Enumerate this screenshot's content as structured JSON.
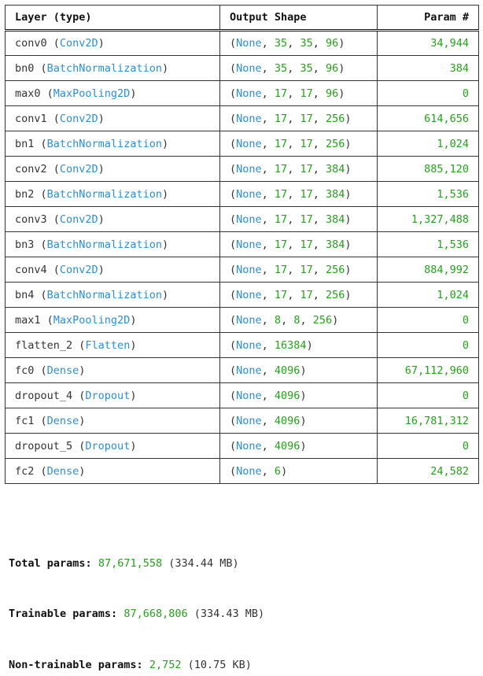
{
  "table": {
    "headers": {
      "layer": "Layer (type)",
      "output_shape": "Output Shape",
      "param": "Param #"
    },
    "none_token": "None",
    "rows": [
      {
        "name": "conv0",
        "type": "Conv2D",
        "shape": [
          "35",
          "35",
          "96"
        ],
        "params": "34,944"
      },
      {
        "name": "bn0",
        "type": "BatchNormalization",
        "shape": [
          "35",
          "35",
          "96"
        ],
        "params": "384"
      },
      {
        "name": "max0",
        "type": "MaxPooling2D",
        "shape": [
          "17",
          "17",
          "96"
        ],
        "params": "0"
      },
      {
        "name": "conv1",
        "type": "Conv2D",
        "shape": [
          "17",
          "17",
          "256"
        ],
        "params": "614,656"
      },
      {
        "name": "bn1",
        "type": "BatchNormalization",
        "shape": [
          "17",
          "17",
          "256"
        ],
        "params": "1,024"
      },
      {
        "name": "conv2",
        "type": "Conv2D",
        "shape": [
          "17",
          "17",
          "384"
        ],
        "params": "885,120"
      },
      {
        "name": "bn2",
        "type": "BatchNormalization",
        "shape": [
          "17",
          "17",
          "384"
        ],
        "params": "1,536"
      },
      {
        "name": "conv3",
        "type": "Conv2D",
        "shape": [
          "17",
          "17",
          "384"
        ],
        "params": "1,327,488"
      },
      {
        "name": "bn3",
        "type": "BatchNormalization",
        "shape": [
          "17",
          "17",
          "384"
        ],
        "params": "1,536"
      },
      {
        "name": "conv4",
        "type": "Conv2D",
        "shape": [
          "17",
          "17",
          "256"
        ],
        "params": "884,992"
      },
      {
        "name": "bn4",
        "type": "BatchNormalization",
        "shape": [
          "17",
          "17",
          "256"
        ],
        "params": "1,024"
      },
      {
        "name": "max1",
        "type": "MaxPooling2D",
        "shape": [
          "8",
          "8",
          "256"
        ],
        "params": "0"
      },
      {
        "name": "flatten_2",
        "type": "Flatten",
        "shape": [
          "16384"
        ],
        "params": "0"
      },
      {
        "name": "fc0",
        "type": "Dense",
        "shape": [
          "4096"
        ],
        "params": "67,112,960"
      },
      {
        "name": "dropout_4",
        "type": "Dropout",
        "shape": [
          "4096"
        ],
        "params": "0"
      },
      {
        "name": "fc1",
        "type": "Dense",
        "shape": [
          "4096"
        ],
        "params": "16,781,312"
      },
      {
        "name": "dropout_5",
        "type": "Dropout",
        "shape": [
          "4096"
        ],
        "params": "0"
      },
      {
        "name": "fc2",
        "type": "Dense",
        "shape": [
          "6"
        ],
        "params": "24,582"
      }
    ]
  },
  "totals": {
    "total": {
      "label": "Total params:",
      "value": "87,671,558",
      "memory": "(334.44 MB)"
    },
    "trainable": {
      "label": "Trainable params:",
      "value": "87,668,806",
      "memory": "(334.43 MB)"
    },
    "non_trainable": {
      "label": "Non-trainable params:",
      "value": "2,752",
      "memory": "(10.75 KB)"
    }
  },
  "colors": {
    "type_text": "#2a8fd8",
    "number_text": "#22a318",
    "default_text": "#333333"
  }
}
